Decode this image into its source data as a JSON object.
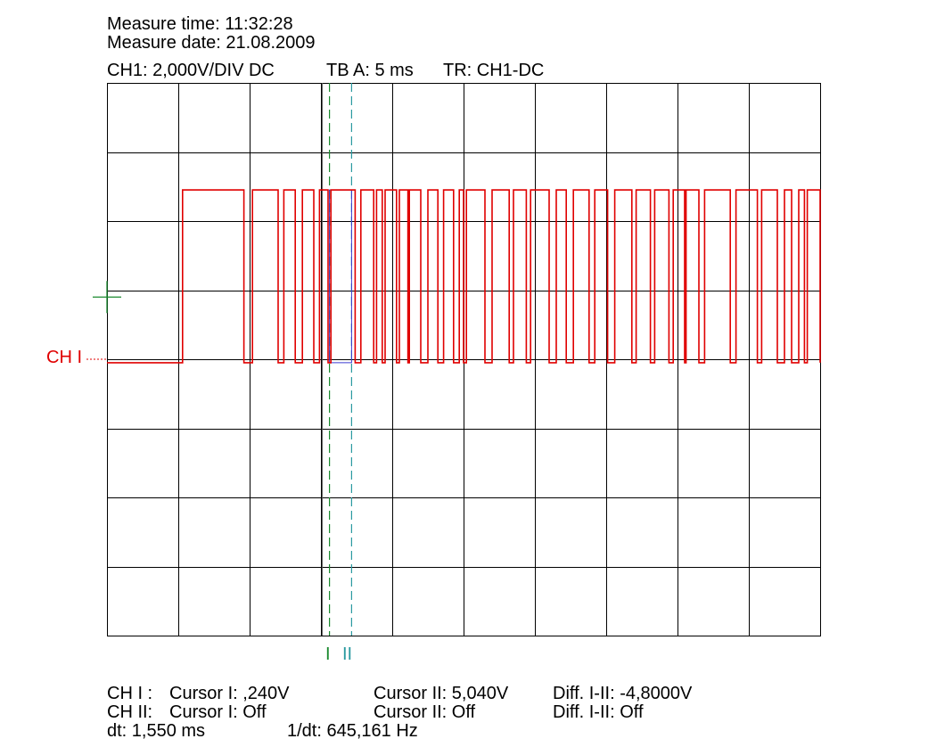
{
  "header": {
    "measure_time": "Measure time: 11:32:28",
    "measure_date": "Measure date: 21.08.2009",
    "ch1_setting": "CH1: 2,000V/DIV DC",
    "timebase": "TB A: 5 ms",
    "trigger": "TR: CH1-DC"
  },
  "channel_label": "CH I",
  "cursor_labels": {
    "cursor1": "I",
    "cursor2": "II"
  },
  "readout": {
    "ch1_prefix": "CH I :",
    "ch1_cursor1": "Cursor I: ,240V",
    "ch1_cursor2": "Cursor II: 5,040V",
    "ch1_diff": "Diff. I-II: -4,8000V",
    "ch2_prefix": "CH II:",
    "ch2_cursor1": "Cursor I: Off",
    "ch2_cursor2": "Cursor II: Off",
    "ch2_diff": "Diff. I-II: Off",
    "dt": "dt: 1,550 ms",
    "inv_dt": "1/dt: 645,161 Hz"
  },
  "colors": {
    "trace": "#e00000",
    "grid": "#000000",
    "cursor1": "#1a8a2e",
    "cursor2": "#2a9aa0",
    "trigger_marker": "#1a8a2e",
    "cursor_window": "#3b3bd0"
  },
  "chart_data": {
    "type": "line",
    "title": "",
    "xlabel": "",
    "ylabel": "",
    "divisions": {
      "x": 10,
      "y": 8
    },
    "x_unit": "ms",
    "y_unit": "V",
    "xlim": [
      0,
      50
    ],
    "ylim": [
      -8,
      8
    ],
    "ground_level_v": 0,
    "trigger_level_v": 1.8,
    "cursors_ms": [
      15.6,
      17.15
    ],
    "series": [
      {
        "low_v": -0.1,
        "high_v": 4.9,
        "edges_ms": [
          5.3,
          9.6,
          10.2,
          12.0,
          12.4,
          13.2,
          13.7,
          14.5,
          14.9,
          15.5,
          15.7,
          17.4,
          17.8,
          18.7,
          18.9,
          19.3,
          19.5,
          20.3,
          20.5,
          21.1,
          21.2,
          22.0,
          22.5,
          23.2,
          23.6,
          24.3,
          24.7,
          25.0,
          25.2,
          26.5,
          27.0,
          28.2,
          28.5,
          29.4,
          29.7,
          31.0,
          31.5,
          32.2,
          32.7,
          33.8,
          34.2,
          35.1,
          35.6,
          36.8,
          37.1,
          38.1,
          38.4,
          39.4,
          39.7,
          40.5,
          40.6,
          41.5,
          41.9,
          43.7,
          44.1,
          45.6,
          45.9,
          47.0,
          47.5,
          48.0,
          48.5,
          48.9,
          49.1,
          50.0
        ]
      }
    ]
  }
}
